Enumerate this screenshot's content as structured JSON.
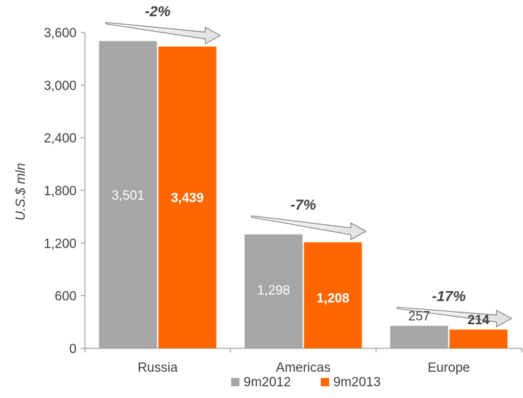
{
  "chart_data": {
    "type": "bar",
    "categories": [
      "Russia",
      "Americas",
      "Europe"
    ],
    "series": [
      {
        "name": "9m2012",
        "values": [
          3501,
          1298,
          257
        ],
        "labels": [
          "3,501",
          "1,298",
          "257"
        ],
        "color": "#a6a6a6",
        "label_color": "#ffffff",
        "label_bold": false
      },
      {
        "name": "9m2013",
        "values": [
          3439,
          1208,
          214
        ],
        "labels": [
          "3,439",
          "1,208",
          "214"
        ],
        "color": "#ff6600",
        "label_color": "#ffffff",
        "label_bold": true
      }
    ],
    "label_outside_color": "#404040",
    "changes": [
      "-2%",
      "-7%",
      "-17%"
    ],
    "ylabel": "U.S.$ mln",
    "xlabel": "",
    "ylim": [
      0,
      3600
    ],
    "yticks": [
      0,
      600,
      1200,
      1800,
      2400,
      3000,
      3600
    ],
    "ytick_labels": [
      "0",
      "600",
      "1,200",
      "1,800",
      "2,400",
      "3,000",
      "3,600"
    ],
    "grid": false,
    "legend_position": "bottom"
  }
}
